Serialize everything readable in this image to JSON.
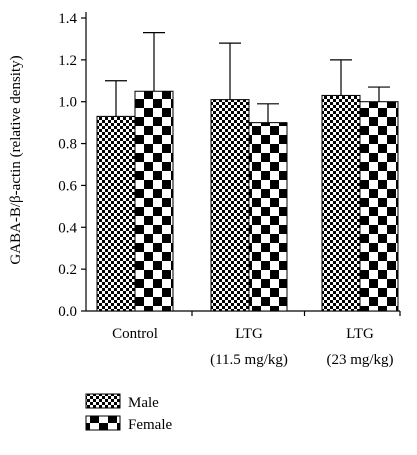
{
  "chart_data": {
    "type": "bar",
    "ylabel": "GABA-B/β-actin (relative density)",
    "ylim": [
      0,
      1.4
    ],
    "yticks": [
      "0.0",
      "0.2",
      "0.4",
      "0.6",
      "0.8",
      "1.0",
      "1.2",
      "1.4"
    ],
    "categories": [
      {
        "line1": "Control",
        "line2": ""
      },
      {
        "line1": "LTG",
        "line2": "(11.5 mg/kg)"
      },
      {
        "line1": "LTG",
        "line2": "(23 mg/kg)"
      }
    ],
    "series": [
      {
        "name": "Male",
        "pattern": "fine-checker",
        "values": [
          0.93,
          1.01,
          1.03
        ],
        "errors": [
          0.17,
          0.27,
          0.17
        ]
      },
      {
        "name": "Female",
        "pattern": "coarse-checker",
        "values": [
          1.05,
          0.9,
          1.0
        ],
        "errors": [
          0.28,
          0.09,
          0.07
        ]
      }
    ],
    "legend_position": "bottom-left",
    "grid": false,
    "colors": {
      "ink": "#000000",
      "background": "#ffffff"
    }
  }
}
